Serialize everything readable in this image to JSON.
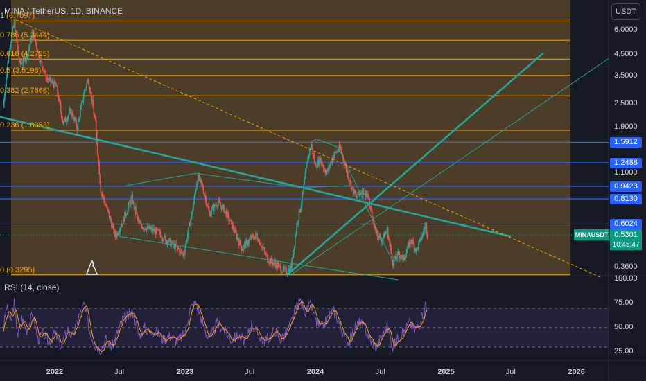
{
  "header": {
    "title": "MINA / TetherUS, 1D, BINANCE"
  },
  "currency_button": "USDT",
  "rsi": {
    "label": "RSI (14, close)"
  },
  "badges": {
    "symbol": "MINAUSDT",
    "current_price": "0.5301",
    "countdown": "10:45:47"
  },
  "colors": {
    "background": "#161a25",
    "fib_zone": "#7a5b2c",
    "fib_line": "#f7a600",
    "horizontal_level": "#2962ff",
    "trend_line": "#26a69a",
    "up_candle": "#26a69a",
    "down_candle": "#ef5350",
    "rsi_line": "#7e57c2",
    "rsi_ma": "#f7a600"
  },
  "chart_data": [
    {
      "type": "candlestick",
      "symbol": "MINA / TetherUS",
      "interval": "1D",
      "exchange": "BINANCE",
      "y_scale": "log",
      "ylim": [
        0.31,
        8.0
      ],
      "xlim": [
        "2021-08-01",
        "2026-04-01"
      ],
      "x_ticks": [
        {
          "date": "2022-01-01",
          "label": "2022",
          "bold": true
        },
        {
          "date": "2022-07-01",
          "label": "Jul",
          "bold": false
        },
        {
          "date": "2023-01-01",
          "label": "2023",
          "bold": true
        },
        {
          "date": "2023-07-01",
          "label": "Jul",
          "bold": false
        },
        {
          "date": "2024-01-01",
          "label": "2024",
          "bold": true
        },
        {
          "date": "2024-07-01",
          "label": "Jul",
          "bold": false
        },
        {
          "date": "2025-01-01",
          "label": "2025",
          "bold": true
        },
        {
          "date": "2025-07-01",
          "label": "Jul",
          "bold": false
        },
        {
          "date": "2026-01-01",
          "label": "2026",
          "bold": true
        }
      ],
      "y_ticks": [
        {
          "value": 6.0,
          "label": "6.0000"
        },
        {
          "value": 4.5,
          "label": "4.5000"
        },
        {
          "value": 3.5,
          "label": "3.5000"
        },
        {
          "value": 2.5,
          "label": "2.5000"
        },
        {
          "value": 1.9,
          "label": "1.9000"
        },
        {
          "value": 1.1,
          "label": "1.1000"
        },
        {
          "value": 0.36,
          "label": "0.3600"
        }
      ],
      "price_path": [
        [
          "2021-08-10",
          2.4
        ],
        [
          "2021-08-25",
          4.6
        ],
        [
          "2021-09-10",
          6.6
        ],
        [
          "2021-09-25",
          4.0
        ],
        [
          "2021-10-15",
          4.4
        ],
        [
          "2021-11-01",
          5.9
        ],
        [
          "2021-11-20",
          4.3
        ],
        [
          "2021-12-10",
          3.4
        ],
        [
          "2022-01-05",
          3.1
        ],
        [
          "2022-01-25",
          2.0
        ],
        [
          "2022-02-15",
          2.3
        ],
        [
          "2022-03-05",
          1.9
        ],
        [
          "2022-03-25",
          2.9
        ],
        [
          "2022-04-05",
          3.4
        ],
        [
          "2022-04-25",
          2.0
        ],
        [
          "2022-05-10",
          0.9
        ],
        [
          "2022-06-01",
          0.68
        ],
        [
          "2022-06-20",
          0.52
        ],
        [
          "2022-07-10",
          0.62
        ],
        [
          "2022-08-05",
          0.82
        ],
        [
          "2022-08-25",
          0.6
        ],
        [
          "2022-09-20",
          0.57
        ],
        [
          "2022-10-15",
          0.55
        ],
        [
          "2022-11-10",
          0.5
        ],
        [
          "2022-12-05",
          0.46
        ],
        [
          "2022-12-28",
          0.42
        ],
        [
          "2023-01-20",
          0.68
        ],
        [
          "2023-02-05",
          1.05
        ],
        [
          "2023-02-20",
          0.93
        ],
        [
          "2023-03-10",
          0.68
        ],
        [
          "2023-04-01",
          0.78
        ],
        [
          "2023-04-20",
          0.72
        ],
        [
          "2023-05-15",
          0.58
        ],
        [
          "2023-06-10",
          0.45
        ],
        [
          "2023-07-01",
          0.5
        ],
        [
          "2023-07-20",
          0.53
        ],
        [
          "2023-08-20",
          0.4
        ],
        [
          "2023-09-15",
          0.37
        ],
        [
          "2023-10-10",
          0.34
        ],
        [
          "2023-10-25",
          0.36
        ],
        [
          "2023-11-10",
          0.6
        ],
        [
          "2023-11-25",
          0.82
        ],
        [
          "2023-12-10",
          1.3
        ],
        [
          "2023-12-20",
          1.55
        ],
        [
          "2024-01-01",
          1.2
        ],
        [
          "2024-01-15",
          1.3
        ],
        [
          "2024-02-01",
          1.1
        ],
        [
          "2024-02-20",
          1.35
        ],
        [
          "2024-03-10",
          1.5
        ],
        [
          "2024-03-25",
          1.2
        ],
        [
          "2024-04-10",
          0.95
        ],
        [
          "2024-04-25",
          0.82
        ],
        [
          "2024-05-10",
          0.9
        ],
        [
          "2024-05-25",
          0.86
        ],
        [
          "2024-06-10",
          0.62
        ],
        [
          "2024-06-25",
          0.52
        ],
        [
          "2024-07-05",
          0.5
        ],
        [
          "2024-07-20",
          0.56
        ],
        [
          "2024-08-05",
          0.38
        ],
        [
          "2024-08-20",
          0.42
        ],
        [
          "2024-09-05",
          0.4
        ],
        [
          "2024-09-25",
          0.5
        ],
        [
          "2024-10-10",
          0.44
        ],
        [
          "2024-10-25",
          0.52
        ],
        [
          "2024-11-05",
          0.6
        ],
        [
          "2024-11-10",
          0.53
        ]
      ],
      "fib_zone": {
        "x_start": "2021-09-01",
        "x_end": "2025-12-15"
      },
      "fib_levels": [
        {
          "ratio": "1",
          "value": 6.7097,
          "label": "1 (6.7097)"
        },
        {
          "ratio": "0.786",
          "value": 5.3444,
          "label": "0.786 (5.3444)"
        },
        {
          "ratio": "0.618",
          "value": 4.2725,
          "label": "0.618 (4.2725)"
        },
        {
          "ratio": "0.5",
          "value": 3.5196,
          "label": "0.5 (3.5196)"
        },
        {
          "ratio": "0.382",
          "value": 2.7668,
          "label": "0.382 (2.7668)"
        },
        {
          "ratio": "0.236",
          "value": 1.8353,
          "label": "0.236 (1.8353)"
        },
        {
          "ratio": "0",
          "value": 0.3295,
          "label": "0 (0.3295)"
        }
      ],
      "horizontal_levels": [
        {
          "value": 1.5912,
          "label": "1.5912"
        },
        {
          "value": 1.2488,
          "label": "1.2488"
        },
        {
          "value": 0.9423,
          "label": "0.9423"
        },
        {
          "value": 0.813,
          "label": "0.8130"
        },
        {
          "value": 0.6024,
          "label": "0.6024"
        }
      ],
      "current_price_line": 0.5301,
      "trend_lines": [
        {
          "style": "solid-thick",
          "from": [
            "2021-08-01",
            2.15
          ],
          "to": [
            "2025-07-01",
            0.52
          ]
        },
        {
          "style": "solid-thick",
          "from": [
            "2023-10-15",
            0.33
          ],
          "to": [
            "2025-10-01",
            4.6
          ]
        },
        {
          "style": "solid-thin",
          "from": [
            "2023-10-25",
            0.33
          ],
          "to": [
            "2026-04-01",
            4.3
          ]
        },
        {
          "style": "solid-thin",
          "from": [
            "2022-07-01",
            0.52
          ],
          "to": [
            "2024-08-20",
            0.31
          ]
        },
        {
          "style": "dashed",
          "from": [
            "2021-09-15",
            6.8
          ],
          "to": [
            "2026-03-10",
            0.32
          ]
        }
      ],
      "channel_lines": [
        {
          "points": [
            [
              "2022-07-20",
              0.95
            ],
            [
              "2023-01-30",
              1.1
            ],
            [
              "2023-11-20",
              0.93
            ],
            [
              "2024-04-10",
              0.95
            ]
          ]
        },
        {
          "points": [
            [
              "2023-12-20",
              1.6
            ],
            [
              "2024-01-05",
              1.65
            ],
            [
              "2024-03-05",
              1.5
            ],
            [
              "2024-04-20",
              1.0
            ],
            [
              "2024-06-15",
              0.6
            ],
            [
              "2024-08-10",
              0.37
            ]
          ]
        }
      ]
    },
    {
      "type": "line",
      "name": "RSI (14, close)",
      "ylim": [
        20,
        100
      ],
      "y_ticks": [
        {
          "value": 100,
          "label": "100.00"
        },
        {
          "value": 75,
          "label": "75.00"
        },
        {
          "value": 50,
          "label": "50.00"
        },
        {
          "value": 25,
          "label": "25.00"
        }
      ],
      "bands": [
        70,
        50,
        30
      ],
      "path": [
        [
          "2021-08-10",
          48
        ],
        [
          "2021-08-20",
          72
        ],
        [
          "2021-09-01",
          55
        ],
        [
          "2021-09-10",
          76
        ],
        [
          "2021-09-20",
          42
        ],
        [
          "2021-10-01",
          60
        ],
        [
          "2021-10-15",
          48
        ],
        [
          "2021-11-01",
          64
        ],
        [
          "2021-11-15",
          38
        ],
        [
          "2021-12-01",
          44
        ],
        [
          "2021-12-15",
          35
        ],
        [
          "2022-01-01",
          45
        ],
        [
          "2022-01-20",
          30
        ],
        [
          "2022-02-05",
          50
        ],
        [
          "2022-02-20",
          40
        ],
        [
          "2022-03-10",
          62
        ],
        [
          "2022-03-25",
          74
        ],
        [
          "2022-04-10",
          45
        ],
        [
          "2022-04-25",
          32
        ],
        [
          "2022-05-10",
          28
        ],
        [
          "2022-05-25",
          38
        ],
        [
          "2022-06-10",
          30
        ],
        [
          "2022-06-25",
          44
        ],
        [
          "2022-07-10",
          58
        ],
        [
          "2022-07-25",
          62
        ],
        [
          "2022-08-10",
          66
        ],
        [
          "2022-08-25",
          42
        ],
        [
          "2022-09-10",
          50
        ],
        [
          "2022-09-25",
          45
        ],
        [
          "2022-10-10",
          47
        ],
        [
          "2022-11-01",
          38
        ],
        [
          "2022-11-20",
          42
        ],
        [
          "2022-12-10",
          36
        ],
        [
          "2023-01-01",
          44
        ],
        [
          "2023-01-15",
          70
        ],
        [
          "2023-02-01",
          76
        ],
        [
          "2023-02-15",
          60
        ],
        [
          "2023-03-01",
          44
        ],
        [
          "2023-03-15",
          40
        ],
        [
          "2023-04-01",
          55
        ],
        [
          "2023-04-20",
          48
        ],
        [
          "2023-05-10",
          38
        ],
        [
          "2023-06-01",
          42
        ],
        [
          "2023-06-20",
          35
        ],
        [
          "2023-07-05",
          55
        ],
        [
          "2023-07-20",
          46
        ],
        [
          "2023-08-10",
          36
        ],
        [
          "2023-08-25",
          40
        ],
        [
          "2023-09-10",
          48
        ],
        [
          "2023-09-25",
          38
        ],
        [
          "2023-10-10",
          44
        ],
        [
          "2023-10-25",
          55
        ],
        [
          "2023-11-10",
          72
        ],
        [
          "2023-11-20",
          78
        ],
        [
          "2023-12-05",
          66
        ],
        [
          "2023-12-20",
          74
        ],
        [
          "2024-01-05",
          54
        ],
        [
          "2024-01-20",
          50
        ],
        [
          "2024-02-05",
          60
        ],
        [
          "2024-02-20",
          68
        ],
        [
          "2024-03-05",
          58
        ],
        [
          "2024-03-20",
          42
        ],
        [
          "2024-04-05",
          35
        ],
        [
          "2024-04-20",
          50
        ],
        [
          "2024-05-05",
          56
        ],
        [
          "2024-05-20",
          48
        ],
        [
          "2024-06-05",
          36
        ],
        [
          "2024-06-20",
          30
        ],
        [
          "2024-07-05",
          42
        ],
        [
          "2024-07-20",
          52
        ],
        [
          "2024-08-05",
          30
        ],
        [
          "2024-08-20",
          40
        ],
        [
          "2024-09-05",
          45
        ],
        [
          "2024-09-20",
          56
        ],
        [
          "2024-10-05",
          48
        ],
        [
          "2024-10-20",
          55
        ],
        [
          "2024-11-01",
          68
        ],
        [
          "2024-11-05",
          76
        ],
        [
          "2024-11-10",
          62
        ]
      ]
    }
  ]
}
